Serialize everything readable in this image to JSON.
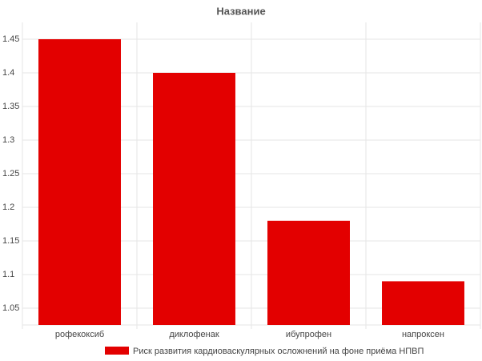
{
  "chart_data": {
    "type": "bar",
    "title": "Название",
    "categories": [
      "рофекоксиб",
      "диклофенак",
      "ибупрофен",
      "напроксен"
    ],
    "series": [
      {
        "name": "Риск развития кардиоваскулярных осложнений на фоне приёма НПВП",
        "color": "#e30000",
        "values": [
          1.45,
          1.4,
          1.18,
          1.09
        ]
      }
    ],
    "ylim": [
      1.025,
      1.475
    ],
    "yticks": [
      1.05,
      1.1,
      1.15,
      1.2,
      1.25,
      1.3,
      1.35,
      1.4,
      1.45
    ],
    "grid": true,
    "legend": "bottom"
  }
}
